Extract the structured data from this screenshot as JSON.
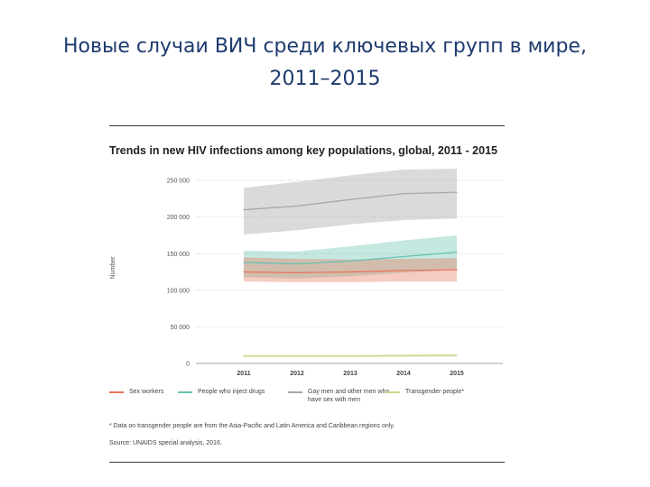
{
  "slide": {
    "title_line1": "Новые случаи ВИЧ среди ключевых групп в мире,",
    "title_line2": "2011–2015"
  },
  "colors": {
    "sex_workers": "#e8765a",
    "people_who_inject_drugs": "#66c2b0",
    "gay_men": "#a7a7a7",
    "transgender": "#c4d98a"
  },
  "chart_data": {
    "type": "area",
    "title": "Trends in new HIV infections among key populations, global, 2011 - 2015",
    "ylabel": "Number",
    "xlabel": "",
    "x": [
      2011,
      2012,
      2013,
      2014,
      2015
    ],
    "ylim": [
      0,
      260000
    ],
    "yticks": [
      0,
      50000,
      100000,
      150000,
      200000,
      250000
    ],
    "ytick_labels": [
      "0",
      "50 000",
      "100 000",
      "150 000",
      "200 000",
      "250 000"
    ],
    "grid": true,
    "series": [
      {
        "name": "Sex workers",
        "values": [
          125000,
          124000,
          125000,
          127000,
          128000
        ],
        "lower": [
          112000,
          111000,
          111000,
          112000,
          112000
        ],
        "upper": [
          145000,
          143000,
          142000,
          143000,
          144000
        ]
      },
      {
        "name": "People who inject drugs",
        "values": [
          138000,
          136000,
          140000,
          146000,
          152000
        ],
        "lower": [
          118000,
          116000,
          119000,
          124000,
          128000
        ],
        "upper": [
          154000,
          153000,
          160000,
          168000,
          175000
        ]
      },
      {
        "name": "Gay men and other men who have sex with men",
        "values": [
          210000,
          215000,
          224000,
          232000,
          234000
        ],
        "lower": [
          176000,
          182000,
          190000,
          196000,
          198000
        ],
        "upper": [
          240000,
          248000,
          257000,
          265000,
          266000
        ]
      },
      {
        "name": "Transgender people*",
        "values": [
          10000,
          10000,
          10000,
          10500,
          11000
        ],
        "lower": [
          8500,
          8500,
          8500,
          9000,
          9200
        ],
        "upper": [
          12000,
          12000,
          12000,
          12500,
          13000
        ]
      }
    ],
    "legend_position": "bottom",
    "footnote": "* Data on transgender people are from the Asia-Pacific and Latin America and Caribbean regions only.",
    "source": "Source: UNAIDS special analysis, 2016."
  }
}
